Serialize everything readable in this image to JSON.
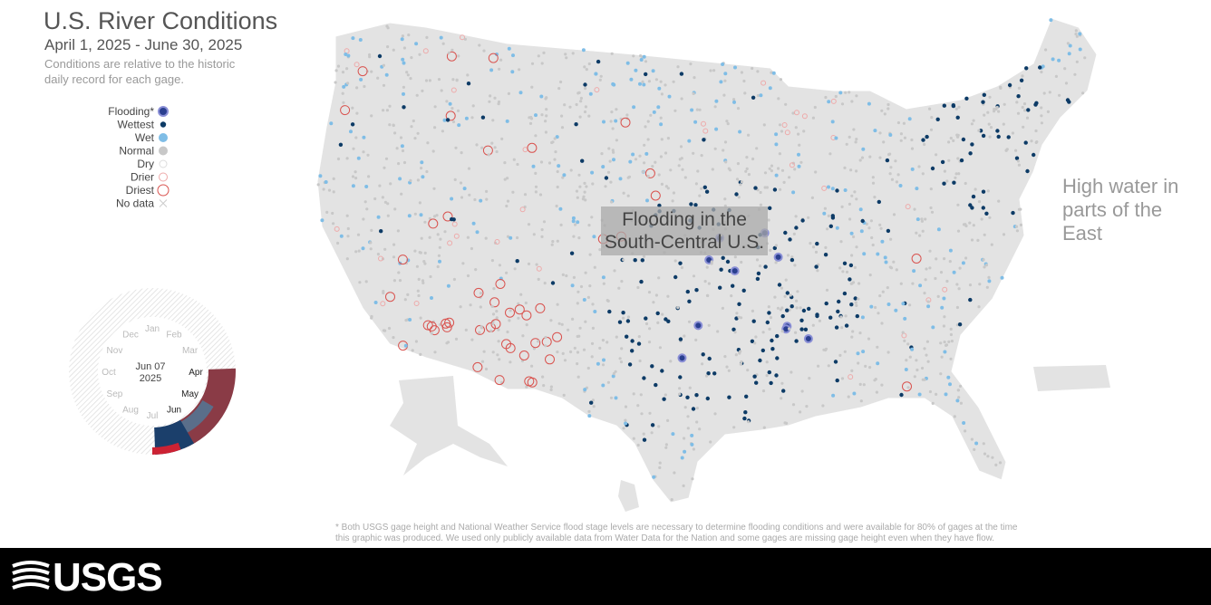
{
  "header": {
    "title": "U.S. River Conditions",
    "date_range": "April 1, 2025 - June 30, 2025",
    "description": "Conditions are relative to the historic daily record for each gage."
  },
  "legend": {
    "items": [
      "Flooding*",
      "Wettest",
      "Wet",
      "Normal",
      "Dry",
      "Drier",
      "Driest",
      "No data"
    ]
  },
  "clock": {
    "months": [
      "Jan",
      "Feb",
      "Mar",
      "Apr",
      "May",
      "Jun",
      "Jul",
      "Aug",
      "Sep",
      "Oct",
      "Nov",
      "Dec"
    ],
    "date": "Jun 07",
    "year": "2025"
  },
  "annotations": [
    "Flooding in the South-Central U.S.",
    "High water in parts of the East"
  ],
  "footnote": "* Both USGS gage height and National Weather Service flood stage levels are necessary to determine flooding conditions and were available for 80% of gages at the time this graphic was produced. We used only publicly available data from Water Data for the Nation and some gages are missing gage height even when they have flow.",
  "logo": "USGS"
}
